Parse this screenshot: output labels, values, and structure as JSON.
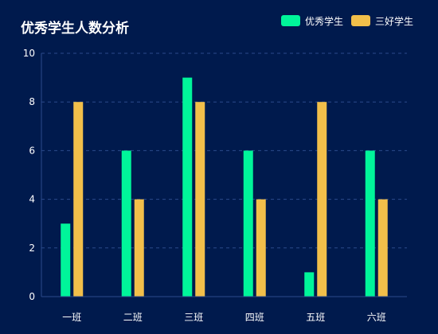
{
  "chart_data": {
    "type": "bar",
    "title": "优秀学生人数分析",
    "categories": [
      "一班",
      "二班",
      "三班",
      "四班",
      "五班",
      "六班"
    ],
    "series": [
      {
        "name": "优秀学生",
        "values": [
          3,
          6,
          9,
          6,
          1,
          6
        ],
        "color": "#00f59a"
      },
      {
        "name": "三好学生",
        "values": [
          8,
          4,
          8,
          4,
          8,
          4
        ],
        "color": "#f2bf4a"
      }
    ],
    "ylim": [
      0,
      10
    ],
    "yticks": [
      "0",
      "2",
      "4",
      "6",
      "8",
      "10"
    ],
    "grid": true,
    "legend_position": "top-right",
    "xlabel": "",
    "ylabel": ""
  },
  "colors": {
    "background": "#001a4d",
    "axis": "#2b4a8c",
    "grid": "#2b4a8c",
    "text": "#ffffff"
  }
}
